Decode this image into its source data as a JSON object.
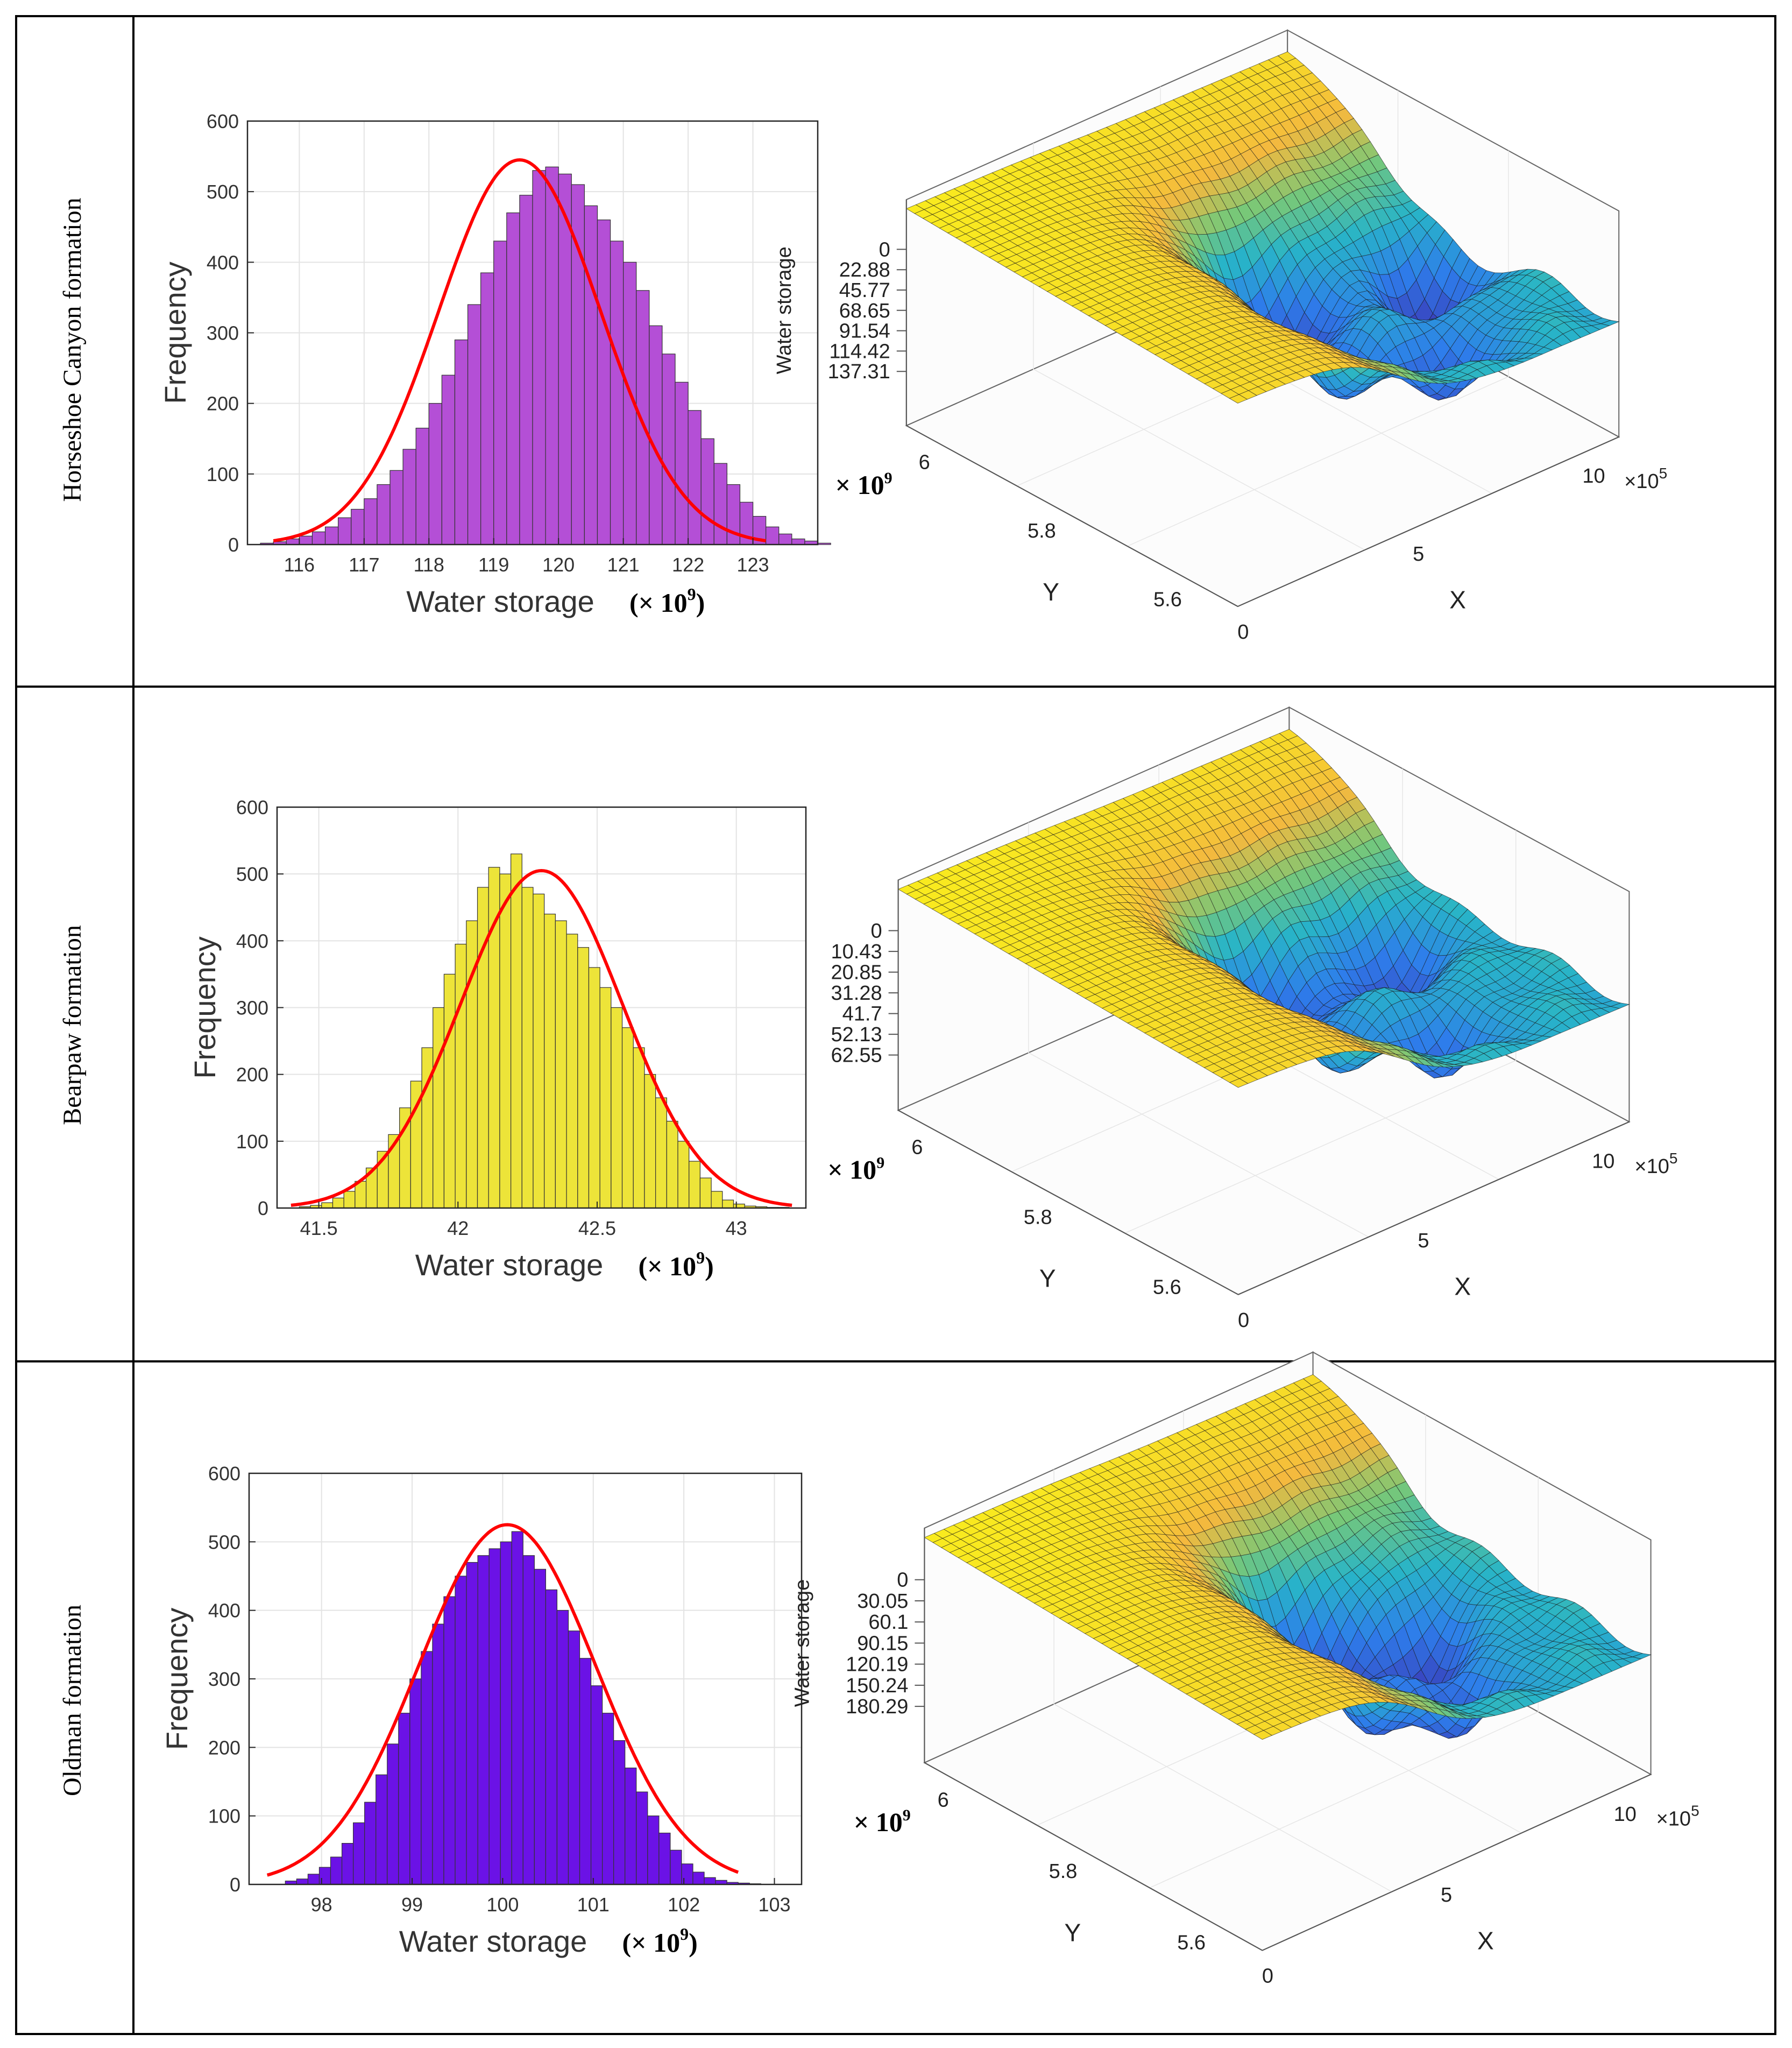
{
  "table": {
    "rows": [
      {
        "label": "Horseshoe Canyon formation"
      },
      {
        "label": "Bearpaw formation"
      },
      {
        "label": "Oldman formation"
      }
    ]
  },
  "chart_data": [
    {
      "type": "bar",
      "panel": "histogram",
      "formation": "Horseshoe Canyon formation",
      "xlabel": "Water storage",
      "xunit_prefix": "(× 10",
      "xunit_exp": "9",
      "xunit_suffix": ")",
      "ylabel": "Frequency",
      "xlim": [
        115.2,
        124.0
      ],
      "ylim": [
        0,
        600
      ],
      "xticks": [
        116,
        117,
        118,
        119,
        120,
        121,
        122,
        123
      ],
      "yticks": [
        0,
        100,
        200,
        300,
        400,
        500,
        600
      ],
      "bin_start": 115.4,
      "bin_width": 0.2,
      "values": [
        2,
        4,
        8,
        12,
        18,
        25,
        38,
        50,
        65,
        85,
        105,
        135,
        165,
        200,
        240,
        290,
        340,
        385,
        430,
        470,
        495,
        530,
        535,
        525,
        510,
        480,
        460,
        430,
        400,
        360,
        310,
        270,
        230,
        190,
        150,
        115,
        85,
        60,
        40,
        25,
        15,
        8,
        5,
        2
      ],
      "bar_color": "#b44fd6",
      "fit": {
        "mean": 119.4,
        "std": 1.25,
        "peak": 545,
        "color": "#ff0000",
        "start": 115.6,
        "end": 123.2
      }
    },
    {
      "type": "surface",
      "panel": "surface",
      "formation": "Horseshoe Canyon formation",
      "zlabel": "Water storage",
      "zticks": [
        "0",
        "22.88",
        "45.77",
        "68.65",
        "91.54",
        "114.42",
        "137.31"
      ],
      "xlabel": "X",
      "ylabel": "Y",
      "xticks": [
        "0",
        "5",
        "10"
      ],
      "xscale": "×10",
      "xscale_exp": "5",
      "yticks": [
        "5.6",
        "5.8",
        "6"
      ],
      "yscale_prefix": "× 10",
      "yscale_exp": "9",
      "pits": [
        [
          0.58,
          0.55,
          1.0,
          0.09
        ],
        [
          0.88,
          0.45,
          0.85,
          0.08
        ],
        [
          0.52,
          0.3,
          0.7,
          0.09
        ],
        [
          0.73,
          0.2,
          0.65,
          0.07
        ]
      ]
    },
    {
      "type": "bar",
      "panel": "histogram",
      "formation": "Bearpaw formation",
      "xlabel": "Water storage",
      "xunit_prefix": "(× 10",
      "xunit_exp": "9",
      "xunit_suffix": ")",
      "ylabel": "Frequency",
      "xlim": [
        41.35,
        43.25
      ],
      "ylim": [
        0,
        600
      ],
      "xticks": [
        41.5,
        42,
        42.5,
        43
      ],
      "yticks": [
        0,
        100,
        200,
        300,
        400,
        500,
        600
      ],
      "bin_start": 41.43,
      "bin_width": 0.04,
      "values": [
        2,
        4,
        8,
        15,
        25,
        40,
        60,
        85,
        110,
        150,
        190,
        240,
        300,
        350,
        395,
        430,
        480,
        510,
        500,
        530,
        480,
        470,
        440,
        430,
        410,
        390,
        360,
        330,
        300,
        270,
        240,
        200,
        165,
        130,
        100,
        70,
        45,
        25,
        12,
        6,
        3,
        2,
        1,
        1
      ],
      "bar_color": "#ede439",
      "fit": {
        "mean": 42.3,
        "std": 0.29,
        "peak": 505,
        "color": "#ff0000",
        "start": 41.4,
        "end": 43.2
      }
    },
    {
      "type": "surface",
      "panel": "surface",
      "formation": "Bearpaw formation",
      "zlabel": "",
      "zticks": [
        "0",
        "10.43",
        "20.85",
        "31.28",
        "41.7",
        "52.13",
        "62.55"
      ],
      "xlabel": "X",
      "ylabel": "Y",
      "xticks": [
        "0",
        "5",
        "10"
      ],
      "xscale": "×10",
      "xscale_exp": "5",
      "yticks": [
        "5.6",
        "5.8",
        "6"
      ],
      "yscale_prefix": "× 10",
      "yscale_exp": "9",
      "pits": [
        [
          0.55,
          0.55,
          0.95,
          0.09
        ],
        [
          0.82,
          0.5,
          0.75,
          0.08
        ],
        [
          0.5,
          0.3,
          0.6,
          0.08
        ],
        [
          0.7,
          0.2,
          0.55,
          0.07
        ]
      ]
    },
    {
      "type": "bar",
      "panel": "histogram",
      "formation": "Oldman formation",
      "xlabel": "Water storage",
      "xunit_prefix": "(× 10",
      "xunit_exp": "9",
      "xunit_suffix": ")",
      "ylabel": "Frequency",
      "xlim": [
        97.2,
        103.3
      ],
      "ylim": [
        0,
        600
      ],
      "xticks": [
        98,
        99,
        100,
        101,
        102,
        103
      ],
      "yticks": [
        0,
        100,
        200,
        300,
        400,
        500,
        600
      ],
      "bin_start": 97.6,
      "bin_width": 0.125,
      "values": [
        5,
        8,
        15,
        25,
        40,
        60,
        90,
        120,
        160,
        205,
        250,
        300,
        340,
        380,
        420,
        450,
        470,
        480,
        490,
        500,
        515,
        480,
        460,
        430,
        400,
        370,
        330,
        290,
        250,
        210,
        170,
        135,
        100,
        75,
        50,
        30,
        18,
        10,
        6,
        3,
        2,
        1
      ],
      "bar_color": "#6b12e6",
      "fit": {
        "mean": 100.05,
        "std": 0.98,
        "peak": 525,
        "color": "#ff0000",
        "start": 97.4,
        "end": 102.6
      }
    },
    {
      "type": "surface",
      "panel": "surface",
      "formation": "Oldman formation",
      "zlabel": "Water storage",
      "zticks": [
        "0",
        "30.05",
        "60.1",
        "90.15",
        "120.19",
        "150.24",
        "180.29"
      ],
      "xlabel": "X",
      "ylabel": "Y",
      "xticks": [
        "0",
        "5",
        "10"
      ],
      "xscale": "×10",
      "xscale_exp": "5",
      "yticks": [
        "5.6",
        "5.8",
        "6"
      ],
      "yscale_prefix": "× 10",
      "yscale_exp": "9",
      "pits": [
        [
          0.6,
          0.55,
          1.0,
          0.08
        ],
        [
          0.78,
          0.42,
          0.8,
          0.07
        ],
        [
          0.55,
          0.32,
          0.7,
          0.08
        ],
        [
          0.7,
          0.22,
          0.6,
          0.07
        ]
      ]
    }
  ]
}
